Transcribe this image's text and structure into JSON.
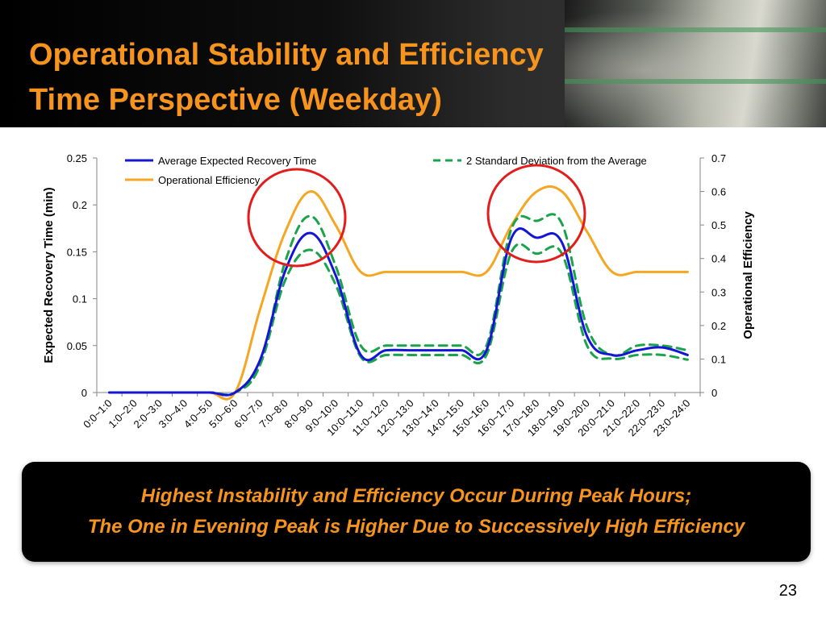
{
  "slide": {
    "title_line1": "Operational Stability and Efficiency",
    "title_line2": "Time Perspective (Weekday)",
    "callout_line1": "Highest Instability and Efficiency Occur During Peak Hours;",
    "callout_line2": "The One in Evening Peak is Higher Due to Successively High Efficiency",
    "page_number": "23"
  },
  "colors": {
    "title": "#f7941d",
    "avg_recovery": "#1515d6",
    "std_dev": "#1aa34a",
    "efficiency": "#f5a623",
    "highlight_circle": "#e31c1c"
  },
  "chart_data": {
    "type": "line",
    "categories": [
      "0:0~1:0",
      "1:0~2:0",
      "2:0~3:0",
      "3:0~4:0",
      "4:0~5:0",
      "5:0~6:0",
      "6:0~7:0",
      "7:0~8:0",
      "8:0~9:0",
      "9:0~10:0",
      "10:0~11:0",
      "11:0~12:0",
      "12:0~13:0",
      "13:0~14:0",
      "14:0~15:0",
      "15:0~16:0",
      "16:0~17:0",
      "17:0~18:0",
      "18:0~19:0",
      "19:0~20:0",
      "20:0~21:0",
      "21:0~22:0",
      "22:0~23:0",
      "23:0~24:0"
    ],
    "ylabel_left": "Expected Recovery Time (min)",
    "ylabel_right": "Operational Efficiency",
    "ylim_left": [
      0,
      0.25
    ],
    "ylim_right": [
      0,
      0.7
    ],
    "yticks_left": [
      "0",
      "0.05",
      "0.1",
      "0.15",
      "0.2",
      "0.25"
    ],
    "yticks_right": [
      "0",
      "0.1",
      "0.2",
      "0.3",
      "0.4",
      "0.5",
      "0.6",
      "0.7"
    ],
    "legend": [
      "Average Expected Recovery Time",
      "Operational Efficiency",
      "2 Standard Deviation from the Average"
    ],
    "legend_position": "top",
    "grid": false,
    "series": [
      {
        "name": "Average Expected Recovery Time",
        "axis": "left",
        "style": "solid",
        "values": [
          0,
          0,
          0,
          0,
          0,
          0,
          0.035,
          0.13,
          0.17,
          0.125,
          0.04,
          0.045,
          0.045,
          0.045,
          0.045,
          0.045,
          0.165,
          0.165,
          0.16,
          0.06,
          0.04,
          0.045,
          0.048,
          0.04
        ]
      },
      {
        "name": "2 Standard Deviation from the Average (upper)",
        "axis": "left",
        "style": "dashed",
        "values": [
          0,
          0,
          0,
          0,
          0,
          0,
          0.03,
          0.14,
          0.188,
          0.135,
          0.05,
          0.05,
          0.05,
          0.05,
          0.05,
          0.05,
          0.175,
          0.183,
          0.18,
          0.07,
          0.04,
          0.05,
          0.05,
          0.045
        ]
      },
      {
        "name": "2 Standard Deviation from the Average (lower)",
        "axis": "left",
        "style": "dashed",
        "values": [
          0,
          0,
          0,
          0,
          0,
          0,
          0.03,
          0.12,
          0.152,
          0.115,
          0.038,
          0.04,
          0.04,
          0.04,
          0.04,
          0.04,
          0.15,
          0.148,
          0.148,
          0.05,
          0.036,
          0.04,
          0.04,
          0.035
        ]
      },
      {
        "name": "Operational Efficiency",
        "axis": "right",
        "style": "solid",
        "values": [
          0,
          0,
          0,
          0,
          0,
          0,
          0.25,
          0.48,
          0.6,
          0.5,
          0.36,
          0.36,
          0.36,
          0.36,
          0.36,
          0.36,
          0.5,
          0.6,
          0.6,
          0.48,
          0.36,
          0.36,
          0.36,
          0.36
        ]
      }
    ]
  }
}
